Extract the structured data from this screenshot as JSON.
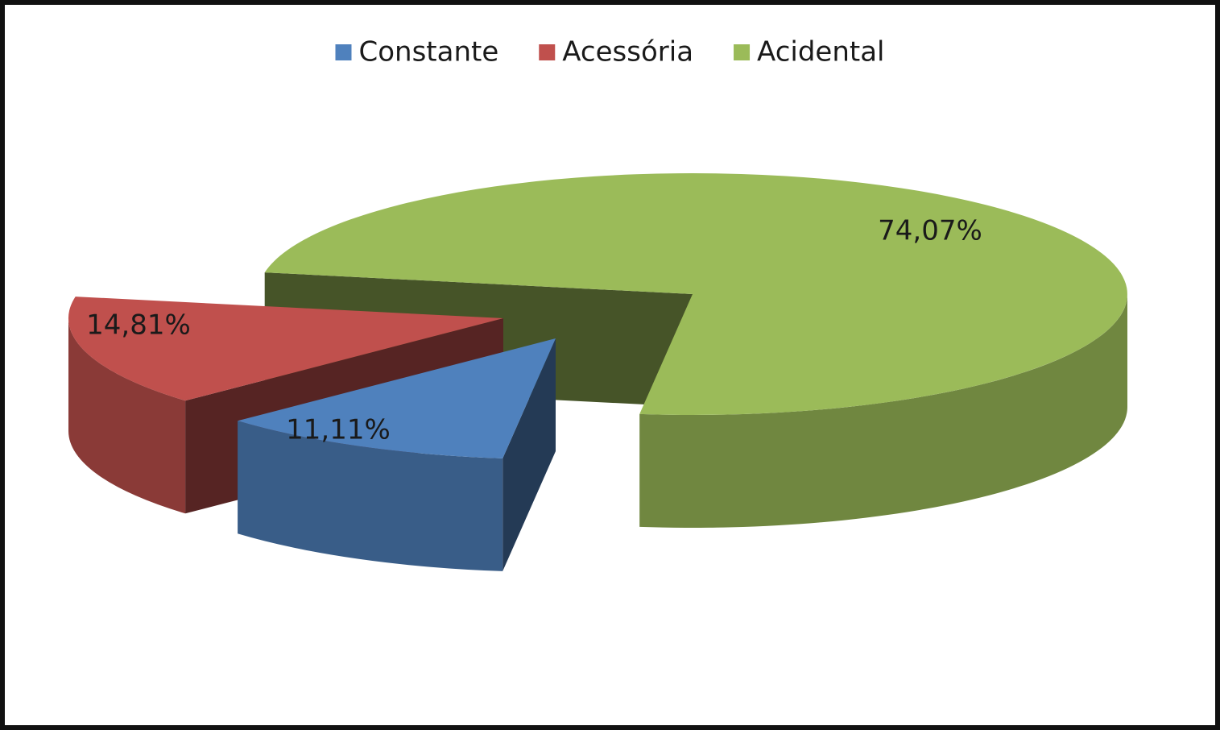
{
  "chart_data": {
    "type": "pie",
    "categories": [
      "Constante",
      "Acessória",
      "Acidental"
    ],
    "values": [
      11.11,
      14.81,
      74.07
    ],
    "value_labels": [
      "11,11%",
      "14,81%",
      "74,07%"
    ],
    "colors": [
      "#4f81bd",
      "#c0504d",
      "#9bbb59"
    ],
    "legend": "top"
  }
}
